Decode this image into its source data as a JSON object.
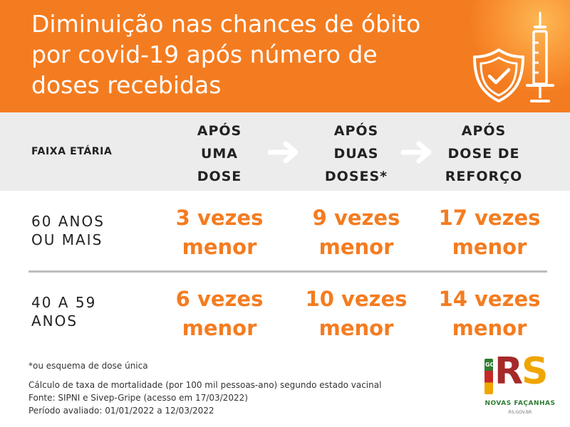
{
  "header": {
    "title": "Diminuição nas chances de óbito\npor covid-19 após número de\ndoses recebidas",
    "colors": {
      "background": "#f47c20",
      "text": "#ffffff"
    },
    "icons": [
      "shield-check-icon",
      "syringe-icon"
    ]
  },
  "table": {
    "age_header": "FAIXA ETÁRIA",
    "columns": [
      "APÓS\nUMA\nDOSE",
      "APÓS\nDUAS\nDOSES*",
      "APÓS\nDOSE DE\nREFORÇO"
    ],
    "rows": [
      {
        "age": "60 ANOS\nOU MAIS",
        "values": [
          "3 vezes\nmenor",
          "9 vezes\nmenor",
          "17 vezes\nmenor"
        ]
      },
      {
        "age": "40 A 59\nANOS",
        "values": [
          "6 vezes\nmenor",
          "10 vezes\nmenor",
          "14 vezes\nmenor"
        ]
      }
    ],
    "colors": {
      "value": "#f47c20",
      "header_bg": "#ececec",
      "divider": "#bdbdbd"
    }
  },
  "footnotes": {
    "asterisk": "*ou esquema de dose única",
    "lines": [
      "Cálculo de taxa de mortalidade (por 100 mil pessoas-ano) segundo estado vacinal",
      "Fonte: SIPNI e Sivep-Gripe (acesso em 17/03/2022)",
      "Período avaliado: 01/01/2022 a 12/03/2022"
    ]
  },
  "logo": {
    "gov": "GOV",
    "r": "R",
    "s": "S",
    "name": "NOVAS FAÇANHAS",
    "sub": "RS.GOV.BR",
    "colors": {
      "r": "#a52a2a",
      "s": "#f0a500",
      "text": "#2e7d32"
    }
  }
}
